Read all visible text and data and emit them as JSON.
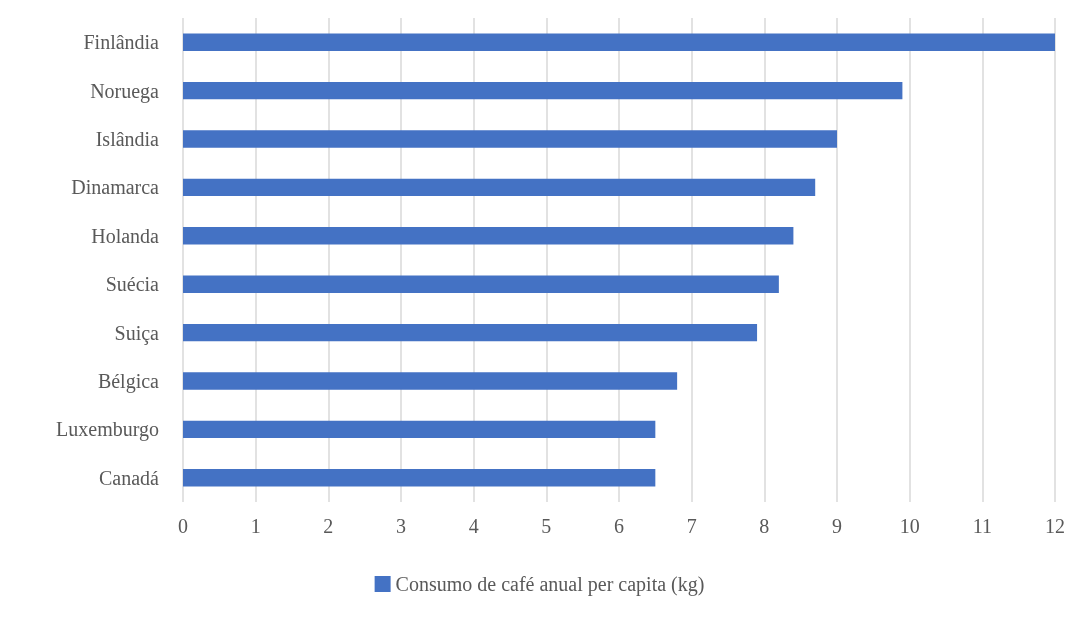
{
  "chart_data": {
    "type": "bar",
    "orientation": "horizontal",
    "categories": [
      "Finlândia",
      "Noruega",
      "Islândia",
      "Dinamarca",
      "Holanda",
      "Suécia",
      "Suiça",
      "Bélgica",
      "Luxemburgo",
      "Canadá"
    ],
    "series": [
      {
        "name": "Consumo de café anual per capita (kg)",
        "color": "#4472c4",
        "values": [
          12,
          9.9,
          9,
          8.7,
          8.4,
          8.2,
          7.9,
          6.8,
          6.5,
          6.5
        ]
      }
    ],
    "xlim": [
      0,
      12
    ],
    "xticks": [
      0,
      1,
      2,
      3,
      4,
      5,
      6,
      7,
      8,
      9,
      10,
      11,
      12
    ],
    "grid": "x",
    "legend": "bottom"
  }
}
